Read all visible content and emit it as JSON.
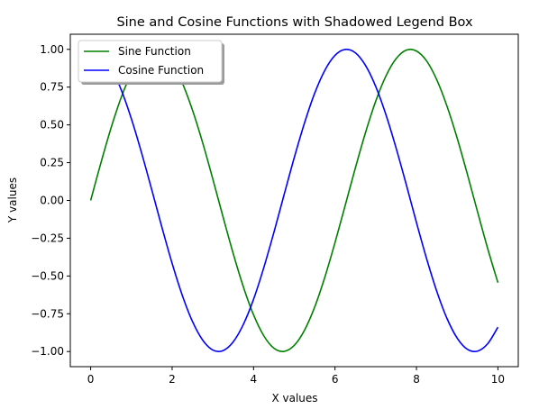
{
  "chart_data": {
    "type": "line",
    "title": "Sine and Cosine Functions with Shadowed Legend Box",
    "xlabel": "X values",
    "ylabel": "Y values",
    "xlim": [
      -0.5,
      10.5
    ],
    "ylim": [
      -1.1,
      1.1
    ],
    "xticks": [
      0,
      2,
      4,
      6,
      8,
      10
    ],
    "xtick_labels": [
      "0",
      "2",
      "4",
      "6",
      "8",
      "10"
    ],
    "yticks": [
      1.0,
      0.75,
      0.5,
      0.25,
      0.0,
      -0.25,
      -0.5,
      -0.75,
      -1.0
    ],
    "ytick_labels": [
      "1.00",
      "0.75",
      "0.50",
      "0.25",
      "0.00",
      "−0.25",
      "−0.50",
      "−0.75",
      "−1.00"
    ],
    "grid": false,
    "legend": {
      "position": "upper left",
      "shadow": true
    },
    "series": [
      {
        "name": "Sine Function",
        "color": "#008000",
        "x": [
          0,
          0.25,
          0.5,
          0.75,
          1,
          1.25,
          1.5,
          1.75,
          2,
          2.25,
          2.5,
          2.75,
          3,
          3.25,
          3.5,
          3.75,
          4,
          4.25,
          4.5,
          4.75,
          5,
          5.25,
          5.5,
          5.75,
          6,
          6.25,
          6.5,
          6.75,
          7,
          7.25,
          7.5,
          7.75,
          8,
          8.25,
          8.5,
          8.75,
          9,
          9.25,
          9.5,
          9.75,
          10
        ],
        "y": [
          0.0,
          0.247,
          0.479,
          0.682,
          0.841,
          0.949,
          0.997,
          0.984,
          0.909,
          0.778,
          0.598,
          0.382,
          0.141,
          -0.108,
          -0.351,
          -0.572,
          -0.757,
          -0.895,
          -0.978,
          -0.999,
          -0.959,
          -0.859,
          -0.706,
          -0.508,
          -0.279,
          -0.033,
          0.215,
          0.45,
          0.657,
          0.823,
          0.938,
          0.995,
          0.989,
          0.923,
          0.798,
          0.624,
          0.412,
          0.174,
          -0.075,
          -0.319,
          -0.544
        ]
      },
      {
        "name": "Cosine Function",
        "color": "#0000ff",
        "x": [
          0,
          0.25,
          0.5,
          0.75,
          1,
          1.25,
          1.5,
          1.75,
          2,
          2.25,
          2.5,
          2.75,
          3,
          3.25,
          3.5,
          3.75,
          4,
          4.25,
          4.5,
          4.75,
          5,
          5.25,
          5.5,
          5.75,
          6,
          6.25,
          6.5,
          6.75,
          7,
          7.25,
          7.5,
          7.75,
          8,
          8.25,
          8.5,
          8.75,
          9,
          9.25,
          9.5,
          9.75,
          10
        ],
        "y": [
          1.0,
          0.969,
          0.878,
          0.732,
          0.54,
          0.315,
          0.071,
          -0.178,
          -0.416,
          -0.628,
          -0.801,
          -0.924,
          -0.99,
          -0.994,
          -0.936,
          -0.82,
          -0.654,
          -0.446,
          -0.211,
          0.038,
          0.284,
          0.512,
          0.709,
          0.861,
          0.96,
          0.999,
          0.977,
          0.893,
          0.754,
          0.568,
          0.347,
          0.105,
          -0.146,
          -0.386,
          -0.602,
          -0.781,
          -0.911,
          -0.985,
          -0.997,
          -0.948,
          -0.839
        ]
      }
    ]
  }
}
